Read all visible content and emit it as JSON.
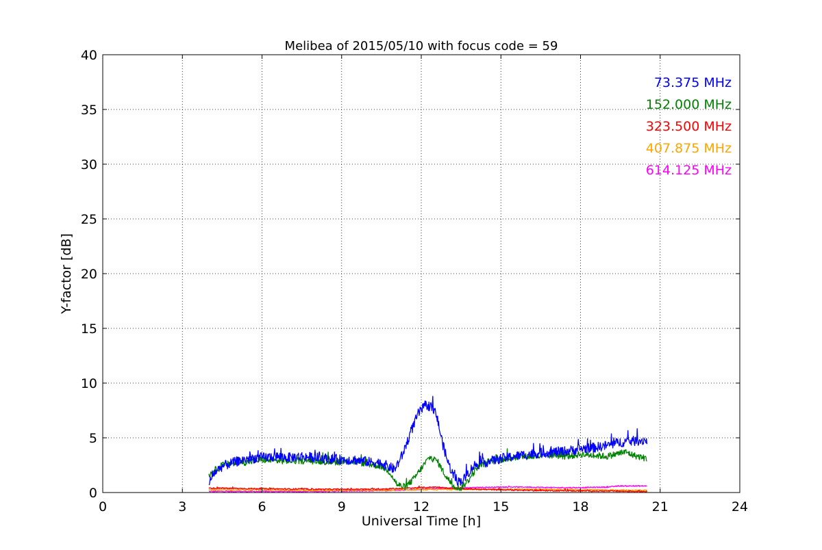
{
  "chart_data": {
    "type": "line",
    "title": "Melibea of 2015/05/10 with focus code = 59",
    "xlabel": "Universal Time [h]",
    "ylabel": "Y-factor [dB]",
    "xlim": [
      0,
      24
    ],
    "ylim": [
      0,
      40
    ],
    "xticks": [
      0,
      3,
      6,
      9,
      12,
      15,
      18,
      21,
      24
    ],
    "yticks": [
      0,
      5,
      10,
      15,
      20,
      25,
      30,
      35,
      40
    ],
    "grid": true,
    "legend_position": "top-right",
    "series": [
      {
        "name": "73.375 MHz",
        "color": "#0000ff",
        "noise": 0.45,
        "x": [
          4.0,
          4.2,
          4.5,
          5.0,
          5.5,
          6.0,
          6.5,
          7.0,
          7.5,
          8.0,
          8.5,
          9.0,
          9.5,
          10.0,
          10.5,
          11.0,
          11.3,
          11.6,
          11.9,
          12.2,
          12.4,
          12.6,
          12.8,
          13.0,
          13.2,
          13.4,
          13.6,
          13.8,
          14.0,
          14.5,
          15.0,
          15.5,
          16.0,
          16.5,
          17.0,
          17.5,
          18.0,
          18.5,
          19.0,
          19.5,
          20.0,
          20.5
        ],
        "y": [
          0.8,
          1.8,
          2.4,
          2.8,
          3.1,
          3.2,
          3.3,
          3.2,
          3.3,
          3.2,
          3.1,
          3.0,
          3.0,
          2.8,
          2.7,
          2.1,
          3.5,
          5.5,
          7.3,
          8.0,
          7.8,
          6.8,
          4.5,
          2.8,
          1.6,
          1.0,
          1.2,
          1.9,
          2.5,
          2.8,
          3.1,
          3.3,
          3.5,
          3.6,
          3.7,
          3.8,
          4.0,
          4.1,
          4.3,
          4.6,
          4.7,
          4.8
        ]
      },
      {
        "name": "152.000 MHz",
        "color": "#008000",
        "noise": 0.3,
        "x": [
          4.0,
          4.2,
          4.5,
          5.0,
          5.5,
          6.0,
          6.5,
          7.0,
          7.5,
          8.0,
          8.5,
          9.0,
          9.5,
          10.0,
          10.5,
          10.8,
          11.1,
          11.4,
          11.7,
          12.0,
          12.3,
          12.6,
          12.9,
          13.2,
          13.5,
          13.8,
          14.1,
          14.5,
          15.0,
          15.5,
          16.0,
          16.5,
          17.0,
          17.5,
          18.0,
          18.5,
          19.0,
          19.3,
          19.7,
          20.0,
          20.5
        ],
        "y": [
          1.6,
          2.0,
          2.5,
          2.7,
          2.8,
          3.0,
          2.9,
          2.9,
          2.9,
          2.9,
          2.8,
          2.8,
          2.8,
          2.6,
          2.4,
          1.9,
          0.7,
          0.5,
          1.2,
          2.2,
          3.2,
          2.9,
          1.6,
          0.6,
          0.4,
          1.2,
          2.3,
          2.8,
          3.0,
          3.2,
          3.3,
          3.3,
          3.4,
          3.3,
          3.5,
          3.4,
          3.3,
          3.5,
          3.7,
          3.4,
          3.1
        ]
      },
      {
        "name": "323.500 MHz",
        "color": "#ff0000",
        "noise": 0.06,
        "x": [
          4.0,
          6.0,
          8.0,
          10.0,
          11.0,
          12.0,
          12.5,
          13.0,
          14.0,
          16.0,
          18.0,
          20.5
        ],
        "y": [
          0.4,
          0.35,
          0.3,
          0.3,
          0.35,
          0.45,
          0.5,
          0.4,
          0.3,
          0.2,
          0.15,
          0.1
        ]
      },
      {
        "name": "407.875 MHz",
        "color": "#ffa500",
        "noise": 0.06,
        "x": [
          4.0,
          6.0,
          8.0,
          10.0,
          12.0,
          14.0,
          16.0,
          18.0,
          20.5
        ],
        "y": [
          0.25,
          0.25,
          0.2,
          0.2,
          0.25,
          0.3,
          0.3,
          0.25,
          0.2
        ]
      },
      {
        "name": "614.125 MHz",
        "color": "#ff00ff",
        "noise": 0.05,
        "x": [
          4.0,
          6.0,
          8.0,
          10.0,
          11.0,
          12.0,
          13.0,
          14.0,
          15.0,
          16.0,
          17.0,
          18.0,
          19.0,
          19.5,
          20.5
        ],
        "y": [
          0.1,
          0.1,
          0.1,
          0.15,
          0.2,
          0.3,
          0.4,
          0.45,
          0.5,
          0.5,
          0.45,
          0.45,
          0.5,
          0.6,
          0.6
        ]
      }
    ]
  }
}
